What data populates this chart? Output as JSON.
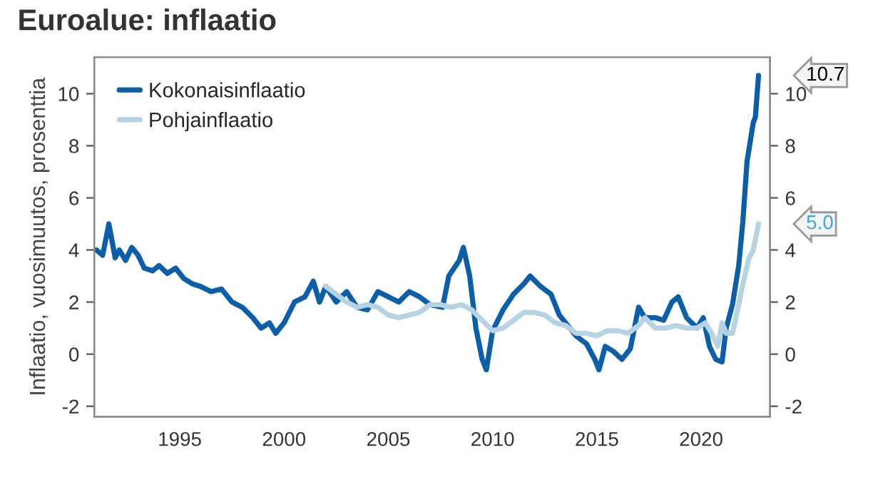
{
  "chart_data": {
    "type": "line",
    "title": "Euroalue: inflaatio",
    "ylabel": "Inflaatio, vuosimuutos, prosenttia",
    "xlim": [
      1990.9,
      2023.3
    ],
    "xticks": [
      1995,
      2000,
      2005,
      2010,
      2015,
      2020
    ],
    "ylim": [
      -2.4,
      11.4
    ],
    "yticks": [
      -2,
      0,
      2,
      4,
      6,
      8,
      10
    ],
    "y2lim": [
      -2.4,
      11.4
    ],
    "y2ticks": [
      -2,
      0,
      2,
      4,
      6,
      8,
      10
    ],
    "legend": "top left",
    "grid": false,
    "marker": "none",
    "line_style": "solid",
    "annotations": [
      {
        "text": "10.7",
        "x": 2022.75,
        "y": 10.7
      },
      {
        "text": "5.0",
        "x": 2022.75,
        "y": 5.0
      }
    ],
    "series": [
      {
        "name": "Kokonaisinflaatio",
        "color": "#0b5ea8",
        "x": [
          1991.0,
          1991.3,
          1991.6,
          1991.9,
          1992.1,
          1992.4,
          1992.7,
          1993.0,
          1993.3,
          1993.7,
          1994.0,
          1994.4,
          1994.8,
          1995.2,
          1995.6,
          1996.0,
          1996.5,
          1997.0,
          1997.5,
          1998.0,
          1998.5,
          1998.9,
          1999.3,
          1999.6,
          2000.0,
          2000.5,
          2001.0,
          2001.4,
          2001.7,
          2002.0,
          2002.5,
          2003.0,
          2003.5,
          2004.0,
          2004.5,
          2005.0,
          2005.5,
          2006.0,
          2006.5,
          2007.0,
          2007.6,
          2007.9,
          2008.4,
          2008.6,
          2008.9,
          2009.2,
          2009.5,
          2009.7,
          2010.0,
          2010.5,
          2011.0,
          2011.5,
          2011.8,
          2012.3,
          2012.8,
          2013.2,
          2013.6,
          2014.0,
          2014.5,
          2014.9,
          2015.1,
          2015.4,
          2015.8,
          2016.2,
          2016.6,
          2017.0,
          2017.3,
          2017.8,
          2018.2,
          2018.6,
          2018.9,
          2019.3,
          2019.8,
          2020.1,
          2020.4,
          2020.7,
          2021.0,
          2021.2,
          2021.5,
          2021.8,
          2022.0,
          2022.2,
          2022.5,
          2022.6,
          2022.75
        ],
        "values": [
          4.0,
          3.8,
          5.0,
          3.7,
          4.0,
          3.6,
          4.1,
          3.8,
          3.3,
          3.2,
          3.4,
          3.1,
          3.3,
          2.9,
          2.7,
          2.6,
          2.4,
          2.5,
          2.0,
          1.8,
          1.4,
          1.0,
          1.2,
          0.8,
          1.2,
          2.0,
          2.2,
          2.8,
          2.0,
          2.6,
          2.0,
          2.4,
          1.8,
          1.7,
          2.4,
          2.2,
          2.0,
          2.4,
          2.2,
          1.9,
          1.8,
          3.0,
          3.6,
          4.1,
          3.0,
          1.0,
          -0.2,
          -0.6,
          0.9,
          1.7,
          2.3,
          2.7,
          3.0,
          2.6,
          2.3,
          1.5,
          1.1,
          0.7,
          0.4,
          -0.2,
          -0.6,
          0.3,
          0.1,
          -0.2,
          0.2,
          1.8,
          1.4,
          1.4,
          1.3,
          2.0,
          2.2,
          1.4,
          1.0,
          1.4,
          0.3,
          -0.2,
          -0.3,
          1.0,
          1.9,
          3.4,
          5.1,
          7.4,
          8.9,
          9.1,
          10.7
        ]
      },
      {
        "name": "Pohjainflaatio",
        "color": "#b5d3e3",
        "x": [
          2002.0,
          2002.5,
          2003.0,
          2003.5,
          2004.0,
          2004.5,
          2005.0,
          2005.5,
          2006.0,
          2006.5,
          2007.0,
          2007.5,
          2008.0,
          2008.5,
          2009.0,
          2009.5,
          2010.0,
          2010.5,
          2011.0,
          2011.5,
          2012.0,
          2012.5,
          2013.0,
          2013.5,
          2014.0,
          2014.5,
          2015.0,
          2015.5,
          2016.0,
          2016.5,
          2017.0,
          2017.3,
          2017.8,
          2018.3,
          2018.8,
          2019.3,
          2019.8,
          2020.2,
          2020.5,
          2020.8,
          2021.0,
          2021.2,
          2021.5,
          2021.8,
          2022.0,
          2022.3,
          2022.5,
          2022.75
        ],
        "values": [
          2.6,
          2.3,
          2.0,
          1.8,
          1.9,
          1.8,
          1.5,
          1.4,
          1.5,
          1.6,
          1.9,
          1.9,
          1.8,
          1.9,
          1.7,
          1.3,
          0.9,
          1.0,
          1.3,
          1.6,
          1.6,
          1.5,
          1.2,
          1.1,
          0.8,
          0.8,
          0.7,
          0.9,
          0.9,
          0.8,
          1.1,
          1.4,
          1.0,
          1.0,
          1.1,
          1.0,
          1.0,
          1.2,
          0.8,
          0.3,
          1.2,
          0.8,
          0.8,
          1.9,
          2.7,
          3.7,
          4.0,
          5.0
        ]
      }
    ]
  }
}
